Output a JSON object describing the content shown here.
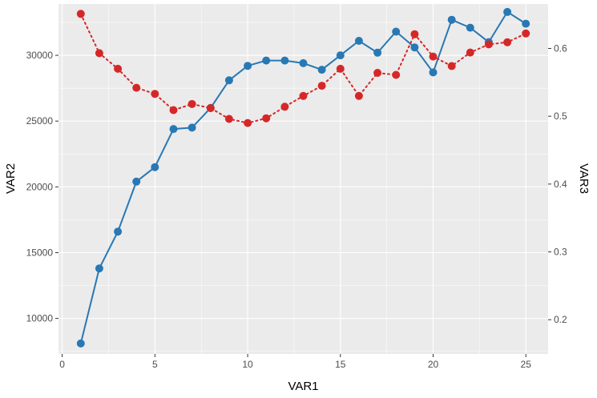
{
  "chart_data": {
    "type": "line",
    "xlabel": "VAR1",
    "ylabel": "VAR2",
    "y2label": "VAR3",
    "xlim": [
      -0.2,
      26.2
    ],
    "ylim": [
      7300,
      33900
    ],
    "y2lim": [
      0.1495,
      0.6655
    ],
    "x_ticks": [
      0,
      5,
      10,
      15,
      20,
      25
    ],
    "y_ticks": [
      10000,
      15000,
      20000,
      25000,
      30000
    ],
    "y2_ticks": [
      0.2,
      0.3,
      0.4,
      0.5,
      0.6
    ],
    "x_tick_labels": [
      "0",
      "5",
      "10",
      "15",
      "20",
      "25"
    ],
    "y_tick_labels": [
      "10000",
      "15000",
      "20000",
      "25000",
      "30000"
    ],
    "y2_tick_labels": [
      "0.2",
      "0.3",
      "0.4",
      "0.5",
      "0.6"
    ],
    "grid": true,
    "series": [
      {
        "axis": "left",
        "line_style": "solid",
        "color": "#2878b4",
        "x": [
          1,
          2,
          3,
          4,
          5,
          6,
          7,
          8,
          9,
          10,
          11,
          12,
          13,
          14,
          15,
          16,
          17,
          18,
          19,
          20,
          21,
          22,
          23,
          24,
          25
        ],
        "values": [
          8100,
          13800,
          16600,
          20400,
          21500,
          24400,
          24500,
          26000,
          28100,
          29200,
          29600,
          29600,
          29400,
          28900,
          30000,
          31100,
          30200,
          31800,
          30600,
          28700,
          32700,
          32100,
          31000,
          33300,
          32400
        ]
      },
      {
        "axis": "right",
        "line_style": "dotted",
        "color": "#d62728",
        "x": [
          1,
          2,
          3,
          4,
          5,
          6,
          7,
          8,
          9,
          10,
          11,
          12,
          13,
          14,
          15,
          16,
          17,
          18,
          19,
          20,
          21,
          22,
          23,
          24,
          25
        ],
        "values": [
          0.651,
          0.593,
          0.57,
          0.542,
          0.533,
          0.509,
          0.518,
          0.512,
          0.496,
          0.49,
          0.497,
          0.514,
          0.53,
          0.545,
          0.57,
          0.53,
          0.564,
          0.561,
          0.621,
          0.588,
          0.574,
          0.594,
          0.606,
          0.609,
          0.622
        ]
      }
    ]
  }
}
